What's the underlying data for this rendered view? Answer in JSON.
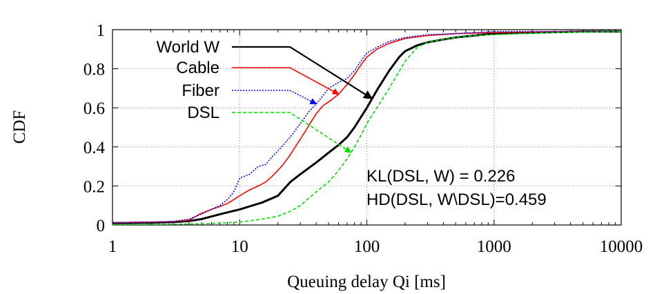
{
  "chart_data": {
    "type": "line",
    "xlabel": "Queuing delay Qi [ms]",
    "ylabel": "CDF",
    "xscale": "log",
    "xlim": [
      1,
      10000
    ],
    "ylim": [
      0,
      1
    ],
    "grid": true,
    "legend_position": "top-left",
    "x_ticks": [
      {
        "value": 1,
        "label": "1"
      },
      {
        "value": 10,
        "label": "10"
      },
      {
        "value": 100,
        "label": "100"
      },
      {
        "value": 1000,
        "label": "1000"
      },
      {
        "value": 10000,
        "label": "10000"
      }
    ],
    "y_ticks": [
      {
        "value": 0,
        "label": "0"
      },
      {
        "value": 0.2,
        "label": "0.2"
      },
      {
        "value": 0.4,
        "label": "0.4"
      },
      {
        "value": 0.6,
        "label": "0.6"
      },
      {
        "value": 0.8,
        "label": "0.8"
      },
      {
        "value": 1,
        "label": "1"
      }
    ],
    "series": [
      {
        "name": "World W",
        "color": "#000000",
        "style": "solid-thick",
        "x": [
          1,
          2,
          3,
          4,
          5,
          7,
          10,
          15,
          20,
          25,
          30,
          40,
          50,
          60,
          70,
          80,
          100,
          120,
          150,
          180,
          200,
          250,
          300,
          400,
          500,
          700,
          1000,
          2000,
          5000,
          10000
        ],
        "y": [
          0.01,
          0.012,
          0.015,
          0.02,
          0.03,
          0.055,
          0.08,
          0.115,
          0.15,
          0.22,
          0.26,
          0.32,
          0.37,
          0.41,
          0.45,
          0.5,
          0.6,
          0.69,
          0.79,
          0.86,
          0.89,
          0.92,
          0.935,
          0.95,
          0.96,
          0.97,
          0.98,
          0.985,
          0.99,
          0.99
        ]
      },
      {
        "name": "Cable",
        "color": "#ff0000",
        "style": "solid",
        "x": [
          1,
          2,
          3,
          4,
          5,
          6,
          7,
          8,
          9,
          10,
          12,
          14,
          16,
          18,
          20,
          22,
          25,
          28,
          30,
          35,
          40,
          45,
          50,
          55,
          60,
          70,
          80,
          90,
          100,
          120,
          150,
          200,
          300,
          500,
          1000,
          3000,
          10000
        ],
        "y": [
          0.012,
          0.015,
          0.018,
          0.025,
          0.06,
          0.08,
          0.095,
          0.11,
          0.13,
          0.15,
          0.18,
          0.2,
          0.22,
          0.25,
          0.28,
          0.31,
          0.36,
          0.41,
          0.44,
          0.51,
          0.57,
          0.61,
          0.63,
          0.65,
          0.67,
          0.72,
          0.77,
          0.82,
          0.86,
          0.9,
          0.93,
          0.955,
          0.97,
          0.98,
          0.985,
          0.99,
          0.99
        ]
      },
      {
        "name": "Fiber",
        "color": "#0000ff",
        "style": "dotted",
        "x": [
          1,
          2,
          3,
          4,
          5,
          6,
          7,
          8,
          9,
          10,
          12,
          14,
          16,
          18,
          20,
          25,
          30,
          35,
          40,
          45,
          50,
          60,
          70,
          80,
          90,
          100,
          120,
          150,
          200,
          300,
          500,
          1000,
          10000
        ],
        "y": [
          0.012,
          0.015,
          0.018,
          0.03,
          0.055,
          0.08,
          0.1,
          0.13,
          0.17,
          0.24,
          0.26,
          0.3,
          0.31,
          0.35,
          0.38,
          0.45,
          0.52,
          0.58,
          0.62,
          0.66,
          0.7,
          0.73,
          0.75,
          0.79,
          0.84,
          0.88,
          0.91,
          0.94,
          0.96,
          0.975,
          0.98,
          0.99,
          0.99
        ]
      },
      {
        "name": "DSL",
        "color": "#00dd00",
        "style": "dashed",
        "x": [
          1,
          3,
          5,
          7,
          10,
          15,
          20,
          25,
          30,
          40,
          50,
          60,
          70,
          80,
          90,
          100,
          120,
          150,
          200,
          250,
          300,
          400,
          500,
          700,
          1000,
          3000,
          10000
        ],
        "y": [
          0.002,
          0.004,
          0.006,
          0.01,
          0.015,
          0.03,
          0.045,
          0.07,
          0.1,
          0.17,
          0.22,
          0.28,
          0.34,
          0.4,
          0.46,
          0.52,
          0.6,
          0.7,
          0.84,
          0.91,
          0.935,
          0.95,
          0.96,
          0.97,
          0.975,
          0.985,
          0.99
        ]
      }
    ],
    "annotations": [
      "KL(DSL, W) = 0.226",
      "HD(DSL, W\\DSL)=0.459"
    ]
  }
}
